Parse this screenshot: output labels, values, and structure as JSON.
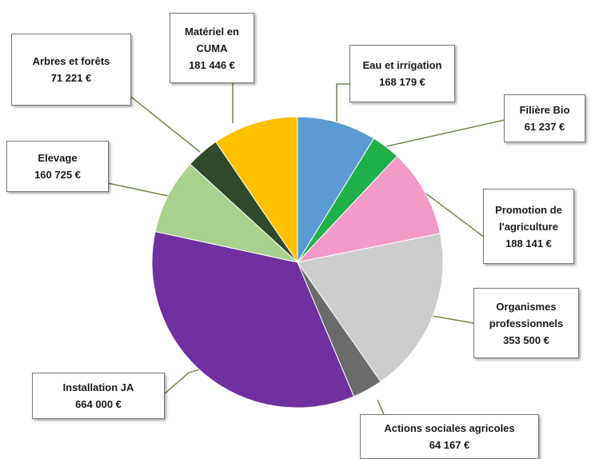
{
  "chart_data": {
    "type": "pie",
    "currency": "€",
    "slices": [
      {
        "label": "Eau et irrigation",
        "value_text": "168 179 €",
        "value": 168179,
        "color": "#5b9bd5"
      },
      {
        "label": "Filière Bio",
        "value_text": "61 237 €",
        "value": 61237,
        "color": "#1fb04a"
      },
      {
        "label": "Promotion de l'agriculture",
        "value_text": "188 141 €",
        "value": 188141,
        "color": "#f49ac8"
      },
      {
        "label": "Organismes professionnels",
        "value_text": "353 500 €",
        "value": 353500,
        "color": "#cdcdcd"
      },
      {
        "label": "Actions sociales agricoles",
        "value_text": "64 167 €",
        "value": 64167,
        "color": "#6b6b6b"
      },
      {
        "label": "Installation JA",
        "value_text": "664 000 €",
        "value": 664000,
        "color": "#7030a0"
      },
      {
        "label": "Elevage",
        "value_text": "160 725 €",
        "value": 160725,
        "color": "#a9d18e"
      },
      {
        "label": "Arbres et forêts",
        "value_text": "71 221 €",
        "value": 71221,
        "color": "#2f4a2a"
      },
      {
        "label": "Matériel en CUMA",
        "value_text": "181 446 €",
        "value": 181446,
        "color": "#ffc000"
      }
    ],
    "leader_color": "#70884a"
  },
  "labels": {
    "eau": {
      "line1": "Eau et irrigation",
      "value": "168 179 €"
    },
    "bio": {
      "line1": "Filière Bio",
      "value": "61 237 €"
    },
    "promo": {
      "line1": "Promotion de",
      "line2": "l'agriculture",
      "value": "188 141 €"
    },
    "org": {
      "line1": "Organismes",
      "line2": "professionnels",
      "value": "353 500 €"
    },
    "actions": {
      "line1": "Actions sociales agricoles",
      "value": "64 167 €"
    },
    "ja": {
      "line1": "Installation JA",
      "value": "664 000 €"
    },
    "elevage": {
      "line1": "Elevage",
      "value": "160 725 €"
    },
    "arbres": {
      "line1": "Arbres et forêts",
      "value": "71 221 €"
    },
    "cuma": {
      "line1": "Matériel en",
      "line2": "CUMA",
      "value": "181 446 €"
    }
  }
}
